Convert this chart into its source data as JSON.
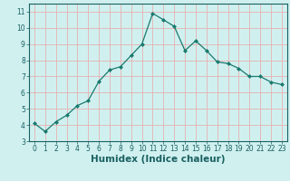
{
  "title": "",
  "xlabel": "Humidex (Indice chaleur)",
  "ylabel": "",
  "x_values": [
    0,
    1,
    2,
    3,
    4,
    5,
    6,
    7,
    8,
    9,
    10,
    11,
    12,
    13,
    14,
    15,
    16,
    17,
    18,
    19,
    20,
    21,
    22,
    23
  ],
  "y_values": [
    4.1,
    3.6,
    4.2,
    4.6,
    5.2,
    5.5,
    6.7,
    7.4,
    7.6,
    8.3,
    9.0,
    10.9,
    10.5,
    10.1,
    8.6,
    9.2,
    8.6,
    7.9,
    7.8,
    7.5,
    7.0,
    7.0,
    6.65,
    6.5
  ],
  "line_color": "#1a7a6e",
  "marker": "D",
  "marker_size": 2.0,
  "bg_color": "#d0f0f0",
  "grid_color": "#e8b0b0",
  "xlim": [
    -0.5,
    23.5
  ],
  "ylim": [
    3.0,
    11.5
  ],
  "yticks": [
    3,
    4,
    5,
    6,
    7,
    8,
    9,
    10,
    11
  ],
  "xticks": [
    0,
    1,
    2,
    3,
    4,
    5,
    6,
    7,
    8,
    9,
    10,
    11,
    12,
    13,
    14,
    15,
    16,
    17,
    18,
    19,
    20,
    21,
    22,
    23
  ],
  "tick_label_fontsize": 5.5,
  "xlabel_fontsize": 7.5,
  "tick_color": "#1a6060",
  "label_color": "#1a6060",
  "spine_color": "#1a6060"
}
